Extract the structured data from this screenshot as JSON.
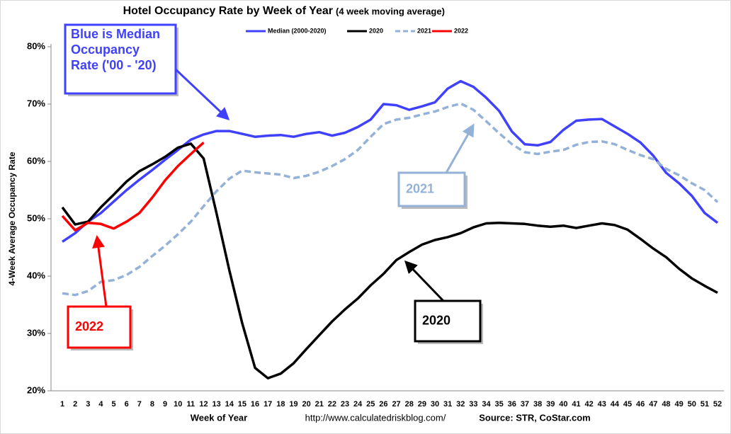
{
  "chart_data": {
    "type": "line",
    "title": "Hotel Occupancy Rate by  Week of Year",
    "subtitle": "(4 week moving average)",
    "x_label": "Week of Year",
    "y_label": "4-Week Average Occupancy Rate",
    "footer_url": "http://www.calculatedriskblog.com/",
    "footer_source": "Source: STR, CoStar.com",
    "categories": [
      "1",
      "2",
      "3",
      "4",
      "5",
      "6",
      "7",
      "8",
      "9",
      "10",
      "11",
      "12",
      "13",
      "14",
      "15",
      "16",
      "17",
      "18",
      "19",
      "20",
      "21",
      "22",
      "23",
      "24",
      "25",
      "26",
      "27",
      "28",
      "29",
      "30",
      "31",
      "32",
      "33",
      "34",
      "35",
      "36",
      "37",
      "38",
      "39",
      "40",
      "41",
      "42",
      "43",
      "44",
      "45",
      "46",
      "47",
      "48",
      "49",
      "50",
      "51",
      "52"
    ],
    "ylim": [
      20,
      80
    ],
    "yticks": [
      {
        "value": 20,
        "label": "20%"
      },
      {
        "value": 30,
        "label": "30%"
      },
      {
        "value": 40,
        "label": "40%"
      },
      {
        "value": 50,
        "label": "50%"
      },
      {
        "value": 60,
        "label": "60%"
      },
      {
        "value": 70,
        "label": "70%"
      },
      {
        "value": 80,
        "label": "80%"
      }
    ],
    "grid": false,
    "legend": "top",
    "series": [
      {
        "name": "Median (2000-2020)",
        "color": "#4040ff",
        "style": "solid",
        "values": [
          46,
          47.5,
          49.5,
          51,
          53,
          55,
          56.8,
          58.5,
          60.3,
          62,
          63.8,
          64.7,
          65.3,
          65.3,
          64.8,
          64.3,
          64.5,
          64.6,
          64.3,
          64.8,
          65.1,
          64.5,
          65,
          66,
          67.3,
          70,
          69.8,
          69,
          69.6,
          70.3,
          72.7,
          74,
          73,
          71.1,
          68.8,
          65.2,
          63,
          62.8,
          63.4,
          65.5,
          67.1,
          67.3,
          67.4,
          66.1,
          64.8,
          63.3,
          61,
          58,
          56.2,
          54,
          51,
          49.3
        ]
      },
      {
        "name": "2020",
        "color": "#000000",
        "style": "solid",
        "values": [
          52,
          49,
          49.5,
          52,
          54.2,
          56.5,
          58.3,
          59.5,
          60.8,
          62.4,
          63.1,
          60.5,
          51,
          41,
          31.8,
          24,
          22.2,
          23,
          24.8,
          27.3,
          29.7,
          32.1,
          34.2,
          36.1,
          38.4,
          40.4,
          42.8,
          44.2,
          45.5,
          46.3,
          46.8,
          47.5,
          48.5,
          49.2,
          49.3,
          49.2,
          49.1,
          48.8,
          48.6,
          48.8,
          48.4,
          48.8,
          49.2,
          48.9,
          48.1,
          46.5,
          44.8,
          43.3,
          41.3,
          39.6,
          38.3,
          37.1
        ]
      },
      {
        "name": "2021",
        "color": "#94b2d8",
        "style": "dashed",
        "values": [
          37,
          36.7,
          37.4,
          39,
          39.3,
          40.2,
          41.6,
          43.5,
          45.3,
          47.3,
          49.5,
          52.2,
          54.8,
          57,
          58.4,
          58.1,
          57.9,
          57.7,
          57.1,
          57.5,
          58.2,
          59.2,
          60.4,
          62,
          64.3,
          66.5,
          67.3,
          67.6,
          68.2,
          68.7,
          69.5,
          70.1,
          69,
          67,
          64.9,
          63,
          61.6,
          61.3,
          61.7,
          62,
          62.9,
          63.4,
          63.5,
          63,
          62,
          61.1,
          60.4,
          58.7,
          57.6,
          56.2,
          55,
          52.9
        ]
      },
      {
        "name": "2022",
        "color": "#ff0000",
        "style": "solid",
        "values": [
          50.5,
          48,
          49.3,
          49.1,
          48.3,
          49.5,
          51,
          53.7,
          56.7,
          59.2,
          61.3,
          63.3,
          null,
          null,
          null,
          null,
          null,
          null,
          null,
          null,
          null,
          null,
          null,
          null,
          null,
          null,
          null,
          null,
          null,
          null,
          null,
          null,
          null,
          null,
          null,
          null,
          null,
          null,
          null,
          null,
          null,
          null,
          null,
          null,
          null,
          null,
          null,
          null,
          null,
          null,
          null,
          null
        ]
      }
    ],
    "annotations": [
      {
        "lines": [
          "Blue is Median",
          "Occupancy",
          "Rate ('00 - '20)"
        ],
        "color": "#4040ff"
      },
      {
        "lines": [
          "2021"
        ],
        "color": "#94b2d8"
      },
      {
        "lines": [
          "2020"
        ],
        "color": "#000000"
      },
      {
        "lines": [
          "2022"
        ],
        "color": "#ff0000"
      }
    ]
  }
}
